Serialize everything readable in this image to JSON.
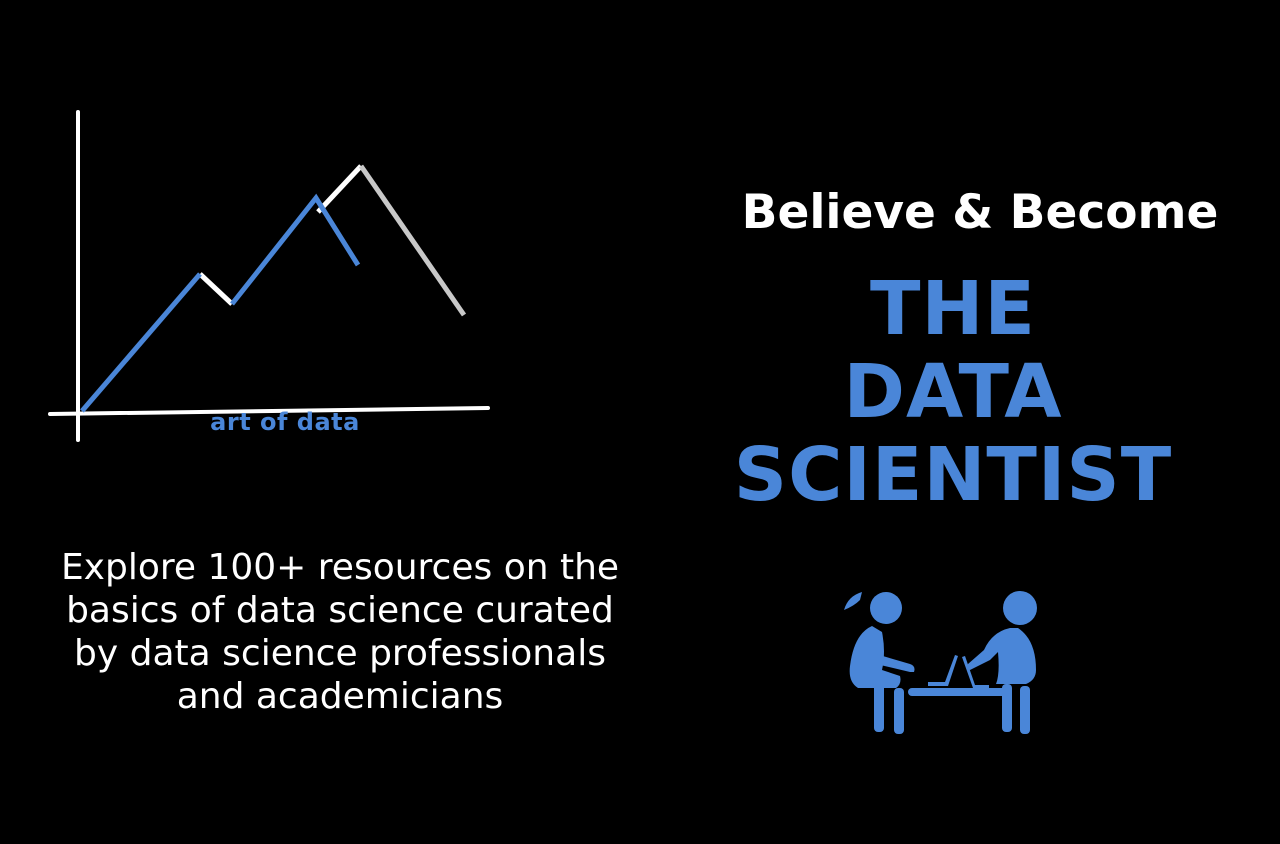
{
  "logo": {
    "caption": "art of data",
    "colors": {
      "axis": "#ffffff",
      "accent": "#4a86d8",
      "faded": "#c8c8c8"
    }
  },
  "description": "Explore 100+ resources on the basics of data science curated by data science professionals and academicians",
  "tagline": "Believe & Become",
  "headline": [
    "THE",
    "DATA",
    "SCIENTIST"
  ],
  "colors": {
    "background": "#000000",
    "text": "#ffffff",
    "accent": "#4a86d8"
  },
  "illustration": {
    "icon": "data-scientists-at-laptops-icon"
  }
}
